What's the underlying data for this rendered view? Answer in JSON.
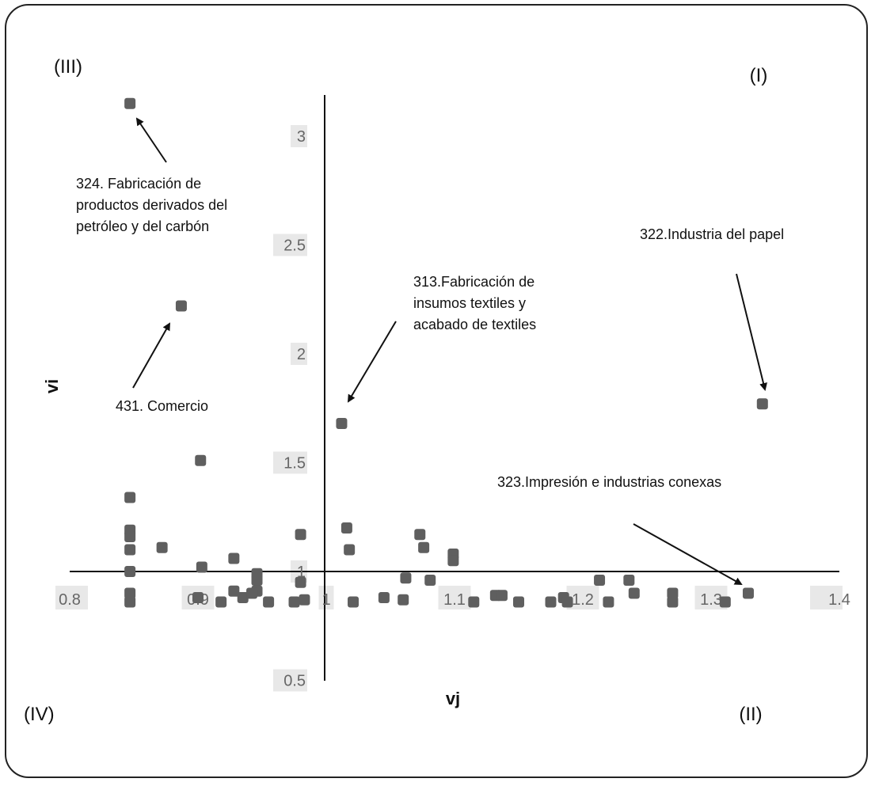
{
  "chart_data": {
    "type": "scatter",
    "title": "",
    "xlabel": "vj",
    "ylabel": "vi",
    "xlim": [
      0.8,
      1.4
    ],
    "ylim": [
      0.5,
      3.2
    ],
    "x_ticks": [
      "0.8",
      "0.9",
      "1",
      "1.1",
      "1.2",
      "1.3",
      "1.4"
    ],
    "y_ticks": [
      "0.5",
      "1",
      "1.5",
      "2",
      "2.5",
      "3"
    ],
    "cross_at": {
      "x": 1.0,
      "y": 1.0
    },
    "grid": false,
    "marker_color": "#5f5f5f",
    "quadrants": [
      "(III)",
      "(I)",
      "(IV)",
      "(II)"
    ],
    "annotations": [
      {
        "lines": [
          "324. Fabricación de",
          "productos derivados del",
          "petróleo y del carbón"
        ],
        "x": 0.847,
        "y": 3.15
      },
      {
        "lines": [
          "431. Comercio"
        ],
        "x": 0.887,
        "y": 2.22
      },
      {
        "lines": [
          "313.Fabricación de",
          "insumos textiles y",
          "acabado de textiles"
        ],
        "x": 1.012,
        "y": 1.68
      },
      {
        "lines": [
          "322.Industria del papel"
        ],
        "x": 1.34,
        "y": 1.77
      },
      {
        "lines": [
          "323.Impresión e industrias conexas"
        ],
        "x": 1.329,
        "y": 0.94
      }
    ],
    "points": [
      {
        "x": 0.847,
        "y": 3.15
      },
      {
        "x": 0.887,
        "y": 2.22
      },
      {
        "x": 1.012,
        "y": 1.68
      },
      {
        "x": 1.34,
        "y": 1.77
      },
      {
        "x": 0.902,
        "y": 1.51
      },
      {
        "x": 0.847,
        "y": 1.34
      },
      {
        "x": 0.847,
        "y": 1.19
      },
      {
        "x": 0.847,
        "y": 1.16
      },
      {
        "x": 0.847,
        "y": 1.1
      },
      {
        "x": 0.847,
        "y": 1.0
      },
      {
        "x": 0.847,
        "y": 0.9
      },
      {
        "x": 0.847,
        "y": 0.86
      },
      {
        "x": 0.872,
        "y": 1.11
      },
      {
        "x": 0.903,
        "y": 1.02
      },
      {
        "x": 0.928,
        "y": 1.06
      },
      {
        "x": 0.946,
        "y": 0.99
      },
      {
        "x": 0.946,
        "y": 0.96
      },
      {
        "x": 0.946,
        "y": 0.91
      },
      {
        "x": 0.98,
        "y": 1.17
      },
      {
        "x": 0.98,
        "y": 0.95
      },
      {
        "x": 0.9,
        "y": 0.88
      },
      {
        "x": 0.928,
        "y": 0.91
      },
      {
        "x": 0.918,
        "y": 0.86
      },
      {
        "x": 0.935,
        "y": 0.88
      },
      {
        "x": 0.942,
        "y": 0.9
      },
      {
        "x": 0.955,
        "y": 0.86
      },
      {
        "x": 0.975,
        "y": 0.86
      },
      {
        "x": 0.983,
        "y": 0.87
      },
      {
        "x": 1.016,
        "y": 1.2
      },
      {
        "x": 1.018,
        "y": 1.1
      },
      {
        "x": 1.062,
        "y": 0.97
      },
      {
        "x": 1.073,
        "y": 1.17
      },
      {
        "x": 1.076,
        "y": 1.11
      },
      {
        "x": 1.081,
        "y": 0.96
      },
      {
        "x": 1.099,
        "y": 1.08
      },
      {
        "x": 1.099,
        "y": 1.05
      },
      {
        "x": 1.021,
        "y": 0.86
      },
      {
        "x": 1.045,
        "y": 0.88
      },
      {
        "x": 1.06,
        "y": 0.87
      },
      {
        "x": 1.115,
        "y": 0.86
      },
      {
        "x": 1.132,
        "y": 0.89
      },
      {
        "x": 1.137,
        "y": 0.89
      },
      {
        "x": 1.15,
        "y": 0.86
      },
      {
        "x": 1.175,
        "y": 0.86
      },
      {
        "x": 1.185,
        "y": 0.88
      },
      {
        "x": 1.188,
        "y": 0.86
      },
      {
        "x": 1.213,
        "y": 0.96
      },
      {
        "x": 1.22,
        "y": 0.86
      },
      {
        "x": 1.236,
        "y": 0.96
      },
      {
        "x": 1.24,
        "y": 0.9
      },
      {
        "x": 1.27,
        "y": 0.9
      },
      {
        "x": 1.27,
        "y": 0.86
      },
      {
        "x": 1.311,
        "y": 0.86
      },
      {
        "x": 1.329,
        "y": 0.9
      }
    ]
  }
}
